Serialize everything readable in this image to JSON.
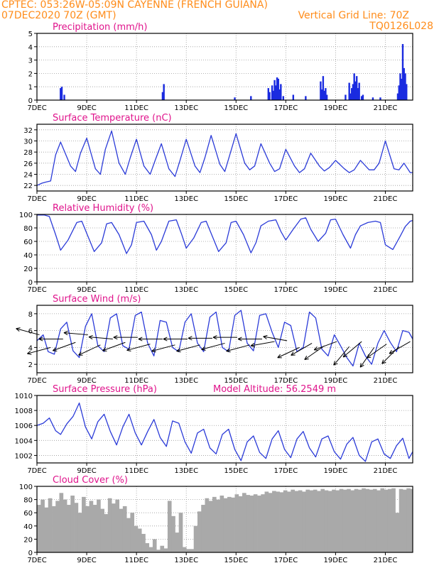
{
  "header": {
    "line1": "CPTEC:   053:26W-05:09N   CAYENNE (FRENCH GUIANA)",
    "line2": "07DEC2020 70Z (GMT)",
    "grid_note": "Vertical Grid Line: 70Z",
    "code": "TQ0126L028"
  },
  "colors": {
    "header": "#ff8c1a",
    "title": "#e0148c",
    "line": "#2b3bd8",
    "bars": "#1a2be0",
    "cloud": "#a9a9a9",
    "wind_arrow": "#000000"
  },
  "x_axis": {
    "labels": [
      "7DEC",
      "9DEC",
      "11DEC",
      "13DEC",
      "15DEC",
      "17DEC",
      "19DEC",
      "21DEC"
    ],
    "label_days": [
      7,
      9,
      11,
      13,
      15,
      17,
      19,
      21
    ],
    "range_days": [
      7,
      22.1
    ]
  },
  "model_altitude": "Model Altitude: 56.2549 m",
  "chart_data": [
    {
      "type": "bar",
      "title": "Precipitation (mm/h)",
      "ylim": [
        0,
        5
      ],
      "yticks": [
        "0",
        "1",
        "2",
        "3",
        "4",
        "5"
      ],
      "x": [
        7.95,
        8.0,
        8.1,
        12.05,
        12.1,
        14.95,
        15.6,
        16.3,
        16.35,
        16.45,
        16.5,
        16.55,
        16.6,
        16.65,
        16.7,
        16.75,
        16.8,
        16.9,
        17.3,
        17.8,
        18.4,
        18.45,
        18.5,
        18.55,
        18.6,
        18.65,
        19.4,
        19.55,
        19.6,
        19.65,
        19.7,
        19.75,
        19.8,
        19.85,
        19.9,
        19.95,
        20.05,
        20.1,
        20.5,
        20.8,
        21.5,
        21.55,
        21.6,
        21.65,
        21.7,
        21.75,
        21.8,
        21.85
      ],
      "values": [
        0.9,
        1.0,
        0.4,
        0.6,
        1.2,
        0.2,
        0.3,
        0.9,
        0.6,
        1.1,
        0.7,
        1.5,
        1.1,
        1.7,
        1.6,
        0.8,
        1.2,
        0.3,
        0.4,
        0.3,
        1.4,
        0.8,
        1.8,
        0.7,
        0.9,
        0.4,
        0.4,
        1.3,
        0.5,
        0.9,
        1.2,
        2.0,
        1.4,
        1.8,
        0.9,
        1.3,
        0.3,
        0.4,
        0.2,
        0.2,
        0.5,
        1.1,
        2.0,
        1.6,
        4.2,
        2.4,
        2.0,
        1.2
      ]
    },
    {
      "type": "line",
      "title": "Surface Temperature (nC)",
      "ylim": [
        21,
        33
      ],
      "yticks": [
        "22",
        "24",
        "26",
        "28",
        "30",
        "32"
      ],
      "x": [
        7.0,
        7.2,
        7.35,
        7.55,
        7.75,
        7.95,
        8.35,
        8.55,
        8.75,
        9.0,
        9.35,
        9.55,
        9.75,
        10.0,
        10.3,
        10.55,
        10.75,
        11.0,
        11.3,
        11.55,
        11.75,
        12.0,
        12.3,
        12.55,
        12.75,
        13.0,
        13.35,
        13.55,
        13.75,
        14.0,
        14.35,
        14.55,
        14.75,
        15.0,
        15.35,
        15.55,
        15.75,
        16.0,
        16.35,
        16.55,
        16.75,
        17.0,
        17.35,
        17.55,
        17.75,
        18.0,
        18.35,
        18.55,
        18.75,
        19.0,
        19.35,
        19.55,
        19.75,
        20.0,
        20.35,
        20.55,
        20.75,
        21.0,
        21.35,
        21.55,
        21.75,
        22.0,
        22.1
      ],
      "values": [
        22.0,
        22.4,
        22.6,
        22.8,
        27.5,
        29.8,
        25.5,
        24.5,
        27.8,
        30.5,
        25.0,
        24.0,
        28.5,
        31.8,
        26.0,
        24.0,
        27.0,
        30.3,
        25.5,
        24.0,
        26.5,
        29.5,
        25.0,
        23.6,
        26.5,
        30.3,
        25.5,
        24.3,
        27.0,
        31.0,
        25.8,
        24.5,
        27.5,
        31.3,
        26.0,
        24.8,
        25.5,
        29.5,
        26.0,
        24.5,
        25.0,
        28.5,
        25.5,
        24.3,
        25.0,
        27.8,
        25.5,
        24.6,
        25.2,
        26.5,
        25.0,
        24.3,
        24.8,
        26.5,
        24.8,
        24.8,
        26.0,
        30.0,
        25.0,
        24.8,
        26.0,
        24.3,
        24.3
      ]
    },
    {
      "type": "line",
      "title": "Relative Humidity (%)",
      "ylim": [
        0,
        100
      ],
      "yticks": [
        "0",
        "20",
        "40",
        "60",
        "80",
        "100"
      ],
      "x": [
        7.0,
        7.3,
        7.5,
        7.75,
        7.95,
        8.25,
        8.6,
        8.8,
        9.0,
        9.3,
        9.6,
        9.8,
        10.0,
        10.3,
        10.6,
        10.8,
        11.0,
        11.3,
        11.6,
        11.8,
        12.0,
        12.3,
        12.6,
        12.8,
        13.0,
        13.3,
        13.6,
        13.8,
        14.0,
        14.3,
        14.6,
        14.8,
        15.0,
        15.3,
        15.6,
        15.8,
        16.0,
        16.3,
        16.6,
        16.8,
        17.0,
        17.3,
        17.6,
        17.8,
        18.0,
        18.3,
        18.6,
        18.8,
        19.0,
        19.3,
        19.6,
        19.8,
        20.0,
        20.3,
        20.6,
        20.8,
        21.0,
        21.3,
        21.6,
        21.8,
        22.0,
        22.1
      ],
      "values": [
        99,
        99,
        97,
        70,
        47,
        62,
        88,
        90,
        72,
        45,
        58,
        86,
        88,
        70,
        42,
        55,
        88,
        90,
        70,
        47,
        60,
        90,
        92,
        72,
        50,
        65,
        88,
        90,
        72,
        45,
        58,
        88,
        90,
        70,
        43,
        58,
        83,
        90,
        92,
        75,
        62,
        78,
        93,
        95,
        78,
        60,
        72,
        92,
        93,
        70,
        50,
        70,
        83,
        88,
        90,
        88,
        55,
        48,
        68,
        82,
        90,
        91
      ]
    },
    {
      "type": "line",
      "title": "Surface Wind (m/s)",
      "ylim": [
        1,
        9
      ],
      "yticks": [
        "2",
        "4",
        "6",
        "8"
      ],
      "x": [
        7.0,
        7.25,
        7.45,
        7.7,
        7.95,
        8.2,
        8.45,
        8.7,
        8.95,
        9.2,
        9.45,
        9.7,
        9.95,
        10.2,
        10.45,
        10.7,
        10.95,
        11.2,
        11.45,
        11.7,
        11.95,
        12.2,
        12.45,
        12.7,
        12.95,
        13.2,
        13.45,
        13.7,
        13.95,
        14.2,
        14.45,
        14.7,
        14.95,
        15.2,
        15.45,
        15.7,
        15.95,
        16.2,
        16.45,
        16.7,
        16.95,
        17.2,
        17.45,
        17.7,
        17.95,
        18.2,
        18.45,
        18.7,
        18.95,
        19.2,
        19.45,
        19.7,
        19.95,
        20.2,
        20.45,
        20.7,
        20.95,
        21.2,
        21.45,
        21.7,
        21.95,
        22.1
      ],
      "values": [
        4.8,
        5.5,
        3.5,
        3.2,
        6.2,
        7.0,
        3.6,
        2.8,
        6.5,
        8.0,
        4.2,
        3.5,
        7.5,
        8.0,
        4.2,
        3.8,
        7.8,
        8.2,
        4.5,
        3.0,
        7.2,
        7.0,
        4.0,
        3.5,
        7.0,
        8.0,
        4.5,
        3.5,
        7.6,
        8.2,
        4.0,
        3.5,
        7.8,
        8.4,
        4.5,
        3.6,
        7.8,
        8.0,
        5.8,
        4.0,
        7.0,
        6.6,
        3.5,
        4.0,
        8.2,
        7.5,
        3.8,
        3.0,
        5.5,
        4.2,
        2.8,
        1.8,
        4.5,
        3.0,
        2.0,
        4.5,
        6.0,
        4.6,
        3.5,
        6.0,
        5.8,
        5.0
      ],
      "arrows_x": [
        7.1,
        7.55,
        8.05,
        8.55,
        9.05,
        9.55,
        10.05,
        10.55,
        11.05,
        11.55,
        12.05,
        12.55,
        13.05,
        13.55,
        14.05,
        14.55,
        15.05,
        15.55,
        16.05,
        16.55,
        17.05,
        17.55,
        18.05,
        18.55,
        19.05,
        19.55,
        20.05,
        20.55,
        21.05,
        21.55,
        22.0
      ],
      "arrows_speed": [
        5.5,
        4.0,
        5.0,
        4.6,
        5.5,
        4.3,
        5.0,
        4.6,
        5.2,
        4.4,
        5.0,
        4.3,
        5.0,
        4.3,
        5.1,
        4.5,
        5.2,
        4.3,
        5.0,
        4.7,
        4.8,
        4.0,
        4.5,
        4.2,
        4.7,
        4.1,
        4.7,
        4.0,
        4.4,
        4.1,
        4.7
      ],
      "arrows_dir_deg": [
        165,
        195,
        180,
        200,
        175,
        205,
        175,
        200,
        180,
        195,
        180,
        195,
        180,
        195,
        180,
        195,
        180,
        195,
        180,
        190,
        170,
        205,
        210,
        215,
        200,
        230,
        220,
        235,
        215,
        225,
        210
      ]
    },
    {
      "type": "line",
      "title": "Surface Pressure (hPa)",
      "ylim": [
        1001,
        1010
      ],
      "yticks": [
        "1002",
        "1004",
        "1006",
        "1008",
        "1010"
      ],
      "x": [
        7.0,
        7.25,
        7.5,
        7.75,
        7.95,
        8.2,
        8.45,
        8.7,
        8.95,
        9.2,
        9.45,
        9.7,
        9.95,
        10.2,
        10.45,
        10.7,
        10.95,
        11.2,
        11.45,
        11.7,
        11.95,
        12.2,
        12.45,
        12.7,
        12.95,
        13.2,
        13.45,
        13.7,
        13.95,
        14.2,
        14.45,
        14.7,
        14.95,
        15.2,
        15.45,
        15.7,
        15.95,
        16.2,
        16.45,
        16.7,
        16.95,
        17.2,
        17.45,
        17.7,
        17.95,
        18.2,
        18.45,
        18.7,
        18.95,
        19.2,
        19.45,
        19.7,
        19.95,
        20.2,
        20.45,
        20.7,
        20.95,
        21.2,
        21.45,
        21.7,
        21.95,
        22.1
      ],
      "values": [
        1006.0,
        1006.3,
        1007.0,
        1005.3,
        1004.8,
        1006.2,
        1007.2,
        1009.0,
        1005.8,
        1004.2,
        1006.5,
        1007.5,
        1005.2,
        1003.4,
        1005.8,
        1007.5,
        1005.0,
        1003.4,
        1005.2,
        1006.8,
        1004.4,
        1003.2,
        1006.6,
        1006.3,
        1003.8,
        1002.3,
        1005.0,
        1005.5,
        1003.0,
        1002.2,
        1004.8,
        1005.5,
        1002.8,
        1001.3,
        1003.8,
        1004.6,
        1002.4,
        1001.6,
        1004.2,
        1005.3,
        1002.8,
        1001.7,
        1004.2,
        1005.2,
        1003.0,
        1001.8,
        1004.2,
        1004.6,
        1002.5,
        1001.5,
        1003.5,
        1004.4,
        1002.0,
        1001.2,
        1003.8,
        1004.2,
        1002.2,
        1001.6,
        1003.3,
        1004.3,
        1001.6,
        1002.5
      ]
    },
    {
      "type": "area",
      "title": "Cloud Cover (%)",
      "ylim": [
        0,
        100
      ],
      "yticks": [
        "0",
        "20",
        "40",
        "60",
        "80",
        "100"
      ],
      "x": [
        7.0,
        7.15,
        7.3,
        7.45,
        7.6,
        7.75,
        7.9,
        8.05,
        8.2,
        8.35,
        8.5,
        8.65,
        8.8,
        8.95,
        9.1,
        9.25,
        9.4,
        9.55,
        9.7,
        9.85,
        10.0,
        10.15,
        10.3,
        10.45,
        10.6,
        10.75,
        10.9,
        11.05,
        11.2,
        11.35,
        11.5,
        11.65,
        11.8,
        11.95,
        12.1,
        12.25,
        12.4,
        12.55,
        12.7,
        12.85,
        13.0,
        13.15,
        13.3,
        13.45,
        13.6,
        13.75,
        13.9,
        14.05,
        14.2,
        14.35,
        14.5,
        14.65,
        14.8,
        14.95,
        15.1,
        15.25,
        15.4,
        15.55,
        15.7,
        15.85,
        16.0,
        16.15,
        16.3,
        16.45,
        16.6,
        16.75,
        16.9,
        17.05,
        17.2,
        17.35,
        17.5,
        17.65,
        17.8,
        17.95,
        18.1,
        18.25,
        18.4,
        18.55,
        18.7,
        18.85,
        19.0,
        19.15,
        19.3,
        19.45,
        19.6,
        19.75,
        19.9,
        20.05,
        20.2,
        20.35,
        20.5,
        20.65,
        20.8,
        20.95,
        21.1,
        21.25,
        21.4,
        21.55,
        21.7,
        21.85,
        22.0,
        22.1
      ],
      "values": [
        72,
        80,
        68,
        82,
        70,
        78,
        90,
        80,
        72,
        86,
        75,
        60,
        84,
        70,
        78,
        72,
        80,
        66,
        58,
        82,
        74,
        80,
        66,
        70,
        52,
        60,
        40,
        36,
        28,
        14,
        8,
        20,
        4,
        10,
        6,
        78,
        55,
        30,
        60,
        8,
        5,
        5,
        40,
        62,
        72,
        82,
        78,
        84,
        80,
        86,
        82,
        84,
        83,
        88,
        85,
        90,
        87,
        86,
        88,
        86,
        88,
        92,
        90,
        93,
        92,
        91,
        94,
        92,
        95,
        93,
        94,
        92,
        95,
        94,
        95,
        93,
        96,
        94,
        93,
        95,
        94,
        96,
        95,
        96,
        94,
        96,
        95,
        97,
        96,
        95,
        96,
        94,
        97,
        95,
        96,
        97,
        60,
        96,
        95,
        97,
        96,
        96
      ]
    }
  ]
}
